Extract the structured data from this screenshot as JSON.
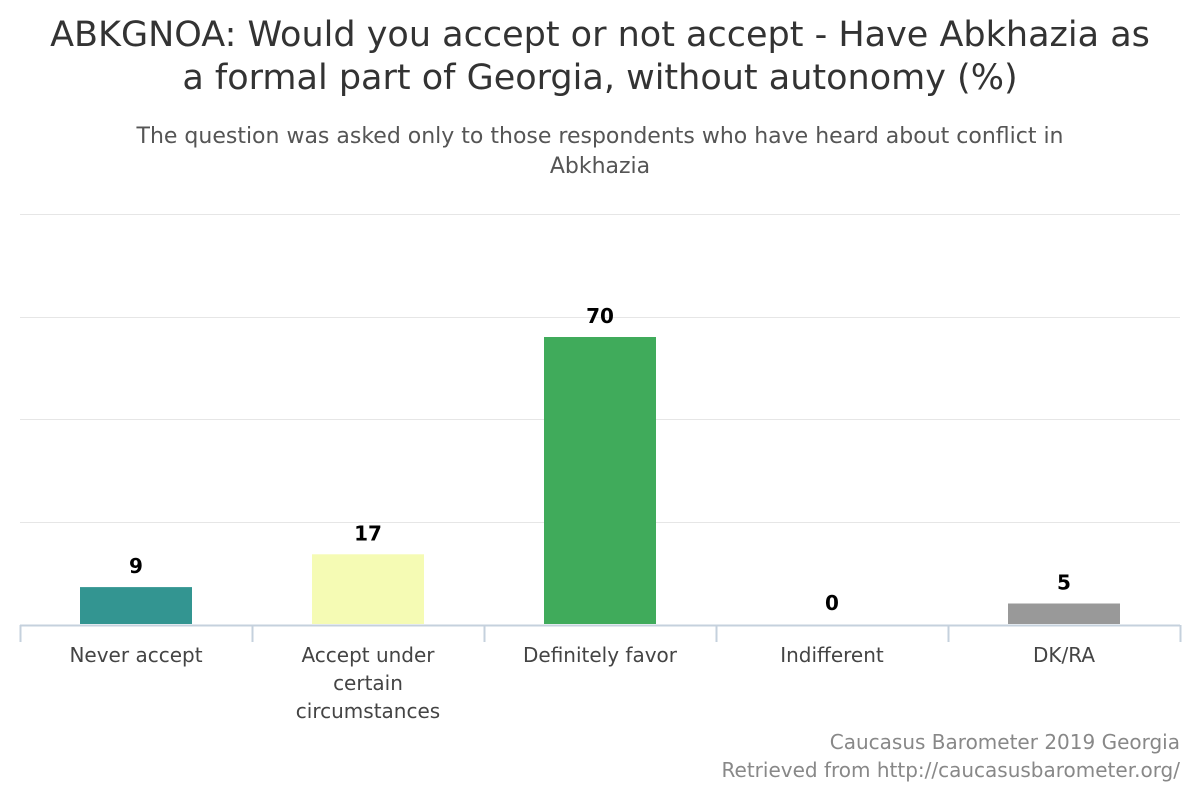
{
  "chart_data": {
    "type": "bar",
    "title": "ABKGNOA: Would you accept or not accept - Have Abkhazia as a formal part of Georgia, without autonomy (%)",
    "subtitle": "The question was asked only to those respondents who have heard about conflict in Abkhazia",
    "categories": [
      "Never accept",
      "Accept under certain circumstances",
      "Definitely favor",
      "Indifferent",
      "DK/RA"
    ],
    "category_label_lines": [
      [
        "Never accept"
      ],
      [
        "Accept under",
        "certain",
        "circumstances"
      ],
      [
        "Definitely favor"
      ],
      [
        "Indifferent"
      ],
      [
        "DK/RA"
      ]
    ],
    "values": [
      9,
      17,
      70,
      0,
      5
    ],
    "colors": [
      "#339591",
      "#f5fbb4",
      "#40ab5b",
      "#3f7f9e",
      "#999999"
    ],
    "ylim": [
      0,
      100
    ],
    "grid": true,
    "legend": "none",
    "xlabel": "",
    "ylabel": ""
  },
  "credits": {
    "line1": "Caucasus Barometer 2019 Georgia",
    "line2": "Retrieved from http://caucasusbarometer.org/"
  }
}
